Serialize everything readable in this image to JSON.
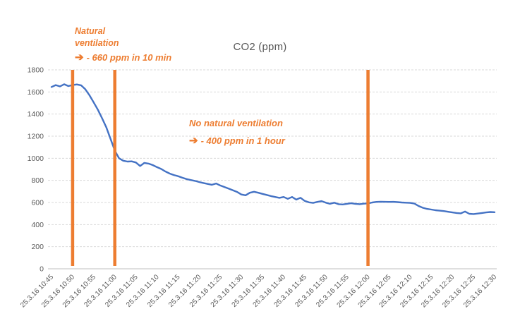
{
  "chart_data": {
    "type": "line",
    "title": "CO2 (ppm)",
    "xlabel": "",
    "ylabel": "",
    "ylim": [
      0,
      1800
    ],
    "ytick_step": 200,
    "grid": true,
    "legend": "none",
    "x_tick_labels": [
      "25.3.16 10:45",
      "25.3.16 10:50",
      "25.3.16 10:55",
      "25.3.16 11:00",
      "25.3.16 11:05",
      "25.3.16 11:10",
      "25.3.16 11:15",
      "25.3.16 11:20",
      "25.3.16 11:25",
      "25.3.16 11:30",
      "25.3.16 11:35",
      "25.3.16 11:40",
      "25.3.16 11:45",
      "25.3.16 11:50",
      "25.3.16 11:55",
      "25.3.16 12:00",
      "25.3.16 12:05",
      "25.3.16 12:10",
      "25.3.16 12:15",
      "25.3.16 12:20",
      "25.3.16 12:25",
      "25.3.16 12:30"
    ],
    "x_start": "25.3.16 10:45",
    "minutes_per_point": 1,
    "series": [
      {
        "name": "CO2 ppm",
        "values": [
          1645,
          1662,
          1650,
          1670,
          1653,
          1662,
          1668,
          1660,
          1625,
          1570,
          1505,
          1438,
          1360,
          1278,
          1175,
          1070,
          1000,
          978,
          970,
          972,
          962,
          930,
          958,
          952,
          938,
          920,
          903,
          880,
          862,
          848,
          838,
          824,
          812,
          803,
          795,
          785,
          776,
          768,
          760,
          772,
          754,
          740,
          725,
          710,
          695,
          672,
          665,
          688,
          697,
          688,
          678,
          668,
          658,
          650,
          642,
          650,
          633,
          650,
          626,
          643,
          614,
          601,
          596,
          605,
          612,
          598,
          588,
          598,
          585,
          582,
          588,
          593,
          588,
          585,
          589,
          592,
          600,
          605,
          607,
          606,
          605,
          606,
          603,
          600,
          598,
          596,
          590,
          568,
          552,
          542,
          536,
          530,
          526,
          522,
          516,
          510,
          505,
          502,
          518,
          498,
          495,
          500,
          505,
          510,
          514,
          512
        ]
      }
    ],
    "event_markers": {
      "description": "vertical orange highlight bars",
      "minute_indices": [
        5,
        15,
        75
      ],
      "at_labels": [
        "25.3.16 10:50",
        "25.3.16 11:00",
        "25.3.16 12:00"
      ]
    }
  },
  "annotations": {
    "natural_ventilation": {
      "line1": "Natural",
      "line2": "ventilation",
      "arrow": "➔",
      "detail": "- 660 ppm in 10 min"
    },
    "no_natural_ventilation": {
      "title": "No natural ventilation",
      "arrow": "➔",
      "detail": "- 400 ppm in 1 hour"
    }
  },
  "colors": {
    "series_line": "#4472C4",
    "marker_bar": "#ED7D31",
    "annotation_text": "#ED7D31",
    "title_text": "#595959",
    "axis_text": "#595959",
    "gridline": "#D9D9D9",
    "axis_line": "#BFBFBF",
    "background": "#FFFFFF"
  }
}
